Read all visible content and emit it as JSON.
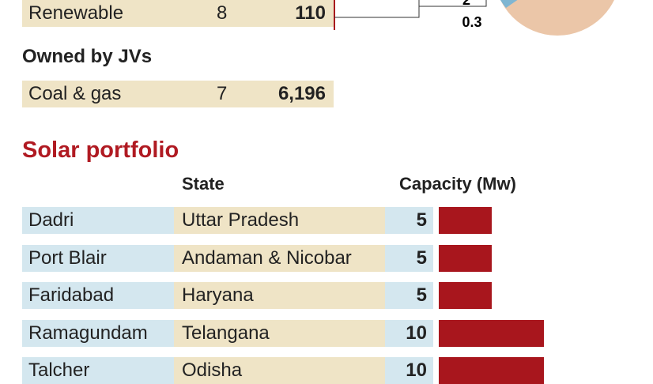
{
  "ownership": {
    "rows": [
      {
        "name": "Renewable",
        "count": 8,
        "capacity": 110
      }
    ],
    "jv_heading": "Owned by JVs",
    "jv_rows": [
      {
        "name": "Coal & gas",
        "count": 7,
        "capacity": "6,196"
      }
    ],
    "pie_labels": [
      2,
      0.3
    ]
  },
  "solar": {
    "title": "Solar portfolio",
    "headers": {
      "state": "State",
      "capacity": "Capacity (Mw)"
    },
    "rows": [
      {
        "site": "Dadri",
        "state": "Uttar Pradesh",
        "capacity": 5
      },
      {
        "site": "Port Blair",
        "state": "Andaman & Nicobar",
        "capacity": 5
      },
      {
        "site": "Faridabad",
        "state": "Haryana",
        "capacity": 5
      },
      {
        "site": "Ramagundam",
        "state": "Telangana",
        "capacity": 10
      },
      {
        "site": "Talcher",
        "state": "Odisha",
        "capacity": 10
      }
    ]
  }
}
